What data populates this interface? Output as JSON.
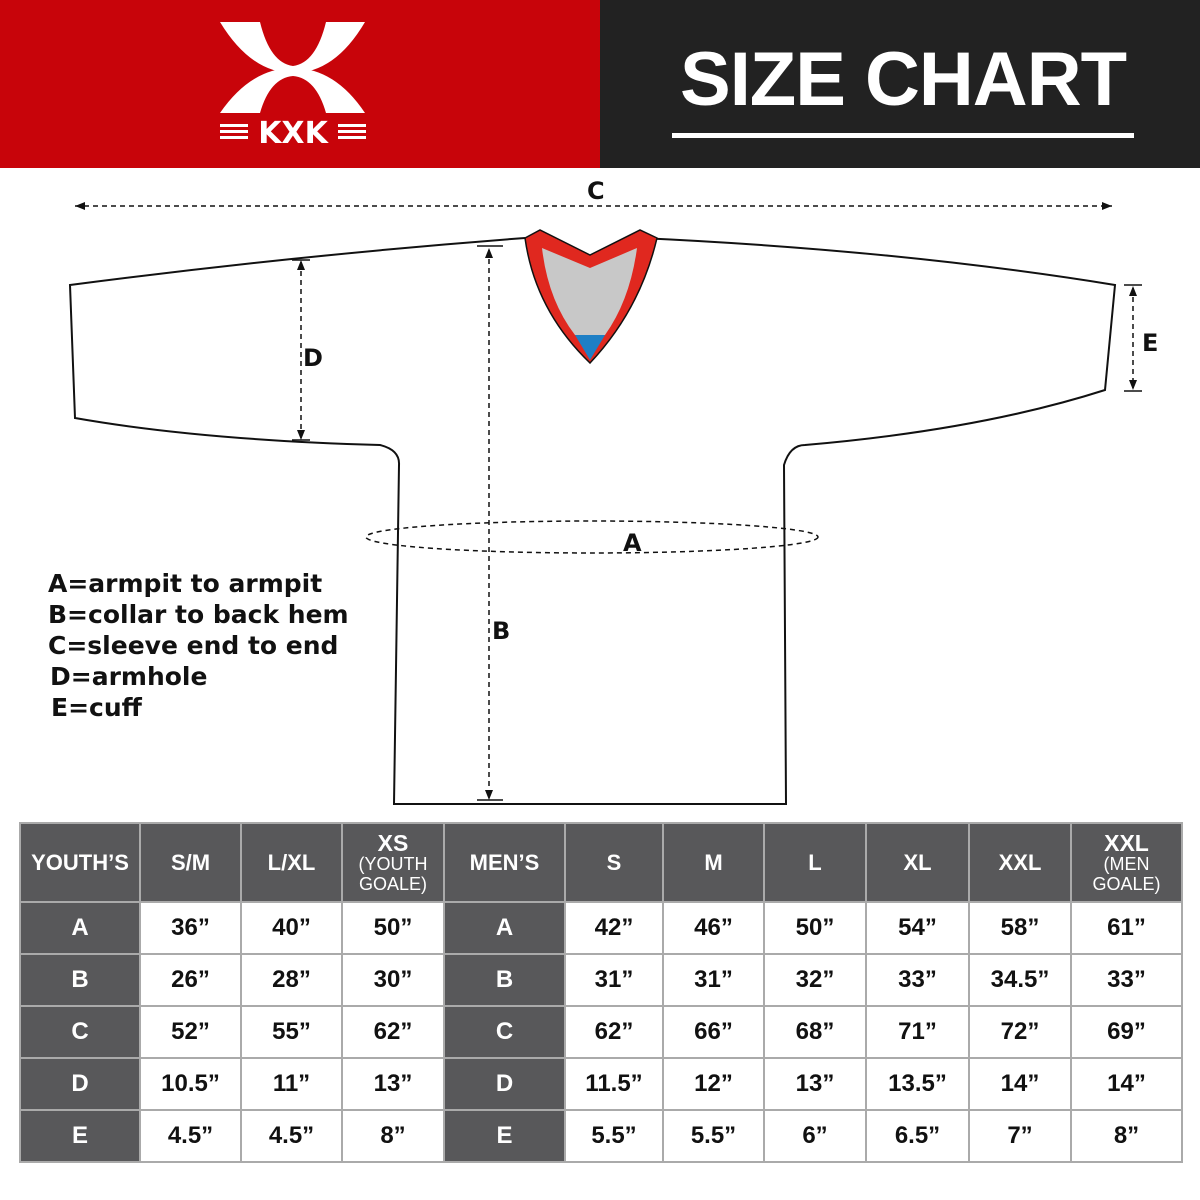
{
  "brand": {
    "logo_text": "KXK",
    "color": "#c8040a"
  },
  "header": {
    "title": "SIZE CHART"
  },
  "diagram": {
    "labels": {
      "A": "A",
      "B": "B",
      "C": "C",
      "D": "D",
      "E": "E"
    }
  },
  "legend": [
    "A=armpit to armpit",
    "B=collar to back hem",
    "C=sleeve end to end",
    "D=armhole",
    "E=cuff"
  ],
  "table": {
    "youth_header": {
      "label": "YOUTH’S",
      "sizes": [
        {
          "main": "S/M"
        },
        {
          "main": "L/XL"
        },
        {
          "main": "XS",
          "sub1": "(YOUTH",
          "sub2": "GOALE)"
        }
      ]
    },
    "men_header": {
      "label": "MEN’S",
      "sizes": [
        {
          "main": "S"
        },
        {
          "main": "M"
        },
        {
          "main": "L"
        },
        {
          "main": "XL"
        },
        {
          "main": "XXL"
        },
        {
          "main": "XXL",
          "sub1": "(MEN",
          "sub2": "GOALE)"
        }
      ]
    },
    "rows": [
      {
        "key": "A",
        "youth": [
          "36”",
          "40”",
          "50”"
        ],
        "men": [
          "42”",
          "46”",
          "50”",
          "54”",
          "58”",
          "61”"
        ]
      },
      {
        "key": "B",
        "youth": [
          "26”",
          "28”",
          "30”"
        ],
        "men": [
          "31”",
          "31”",
          "32”",
          "33”",
          "34.5”",
          "33”"
        ]
      },
      {
        "key": "C",
        "youth": [
          "52”",
          "55”",
          "62”"
        ],
        "men": [
          "62”",
          "66”",
          "68”",
          "71”",
          "72”",
          "69”"
        ]
      },
      {
        "key": "D",
        "youth": [
          "10.5”",
          "11”",
          "13”"
        ],
        "men": [
          "11.5”",
          "12”",
          "13”",
          "13.5”",
          "14”",
          "14”"
        ]
      },
      {
        "key": "E",
        "youth": [
          "4.5”",
          "4.5”",
          "8”"
        ],
        "men": [
          "5.5”",
          "5.5”",
          "6”",
          "6.5”",
          "7”",
          "8”"
        ]
      }
    ]
  }
}
